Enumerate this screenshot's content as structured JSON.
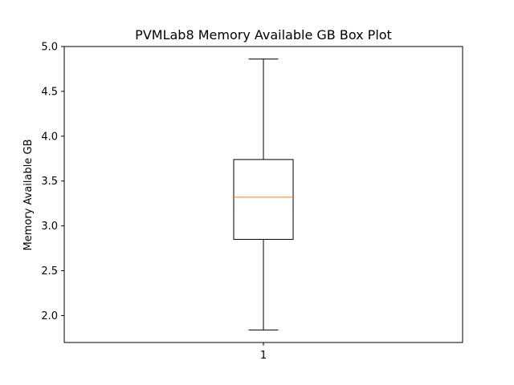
{
  "chart_data": {
    "type": "box",
    "title": "PVMLab8 Memory Available GB Box Plot",
    "xlabel": "",
    "ylabel": "Memory Available GB",
    "categories": [
      "1"
    ],
    "boxes": [
      {
        "whisker_low": 1.84,
        "q1": 2.85,
        "median": 3.32,
        "q3": 3.74,
        "whisker_high": 4.86
      }
    ],
    "ylim": [
      1.7,
      5.0
    ],
    "yticks": [
      2.0,
      2.5,
      3.0,
      3.5,
      4.0,
      4.5,
      5.0
    ],
    "ytick_labels": [
      "2.0",
      "2.5",
      "3.0",
      "3.5",
      "4.0",
      "4.5",
      "5.0"
    ],
    "grid": false,
    "colors": {
      "box": "#000000",
      "median": "#ff7f0e",
      "whisker": "#000000"
    }
  }
}
